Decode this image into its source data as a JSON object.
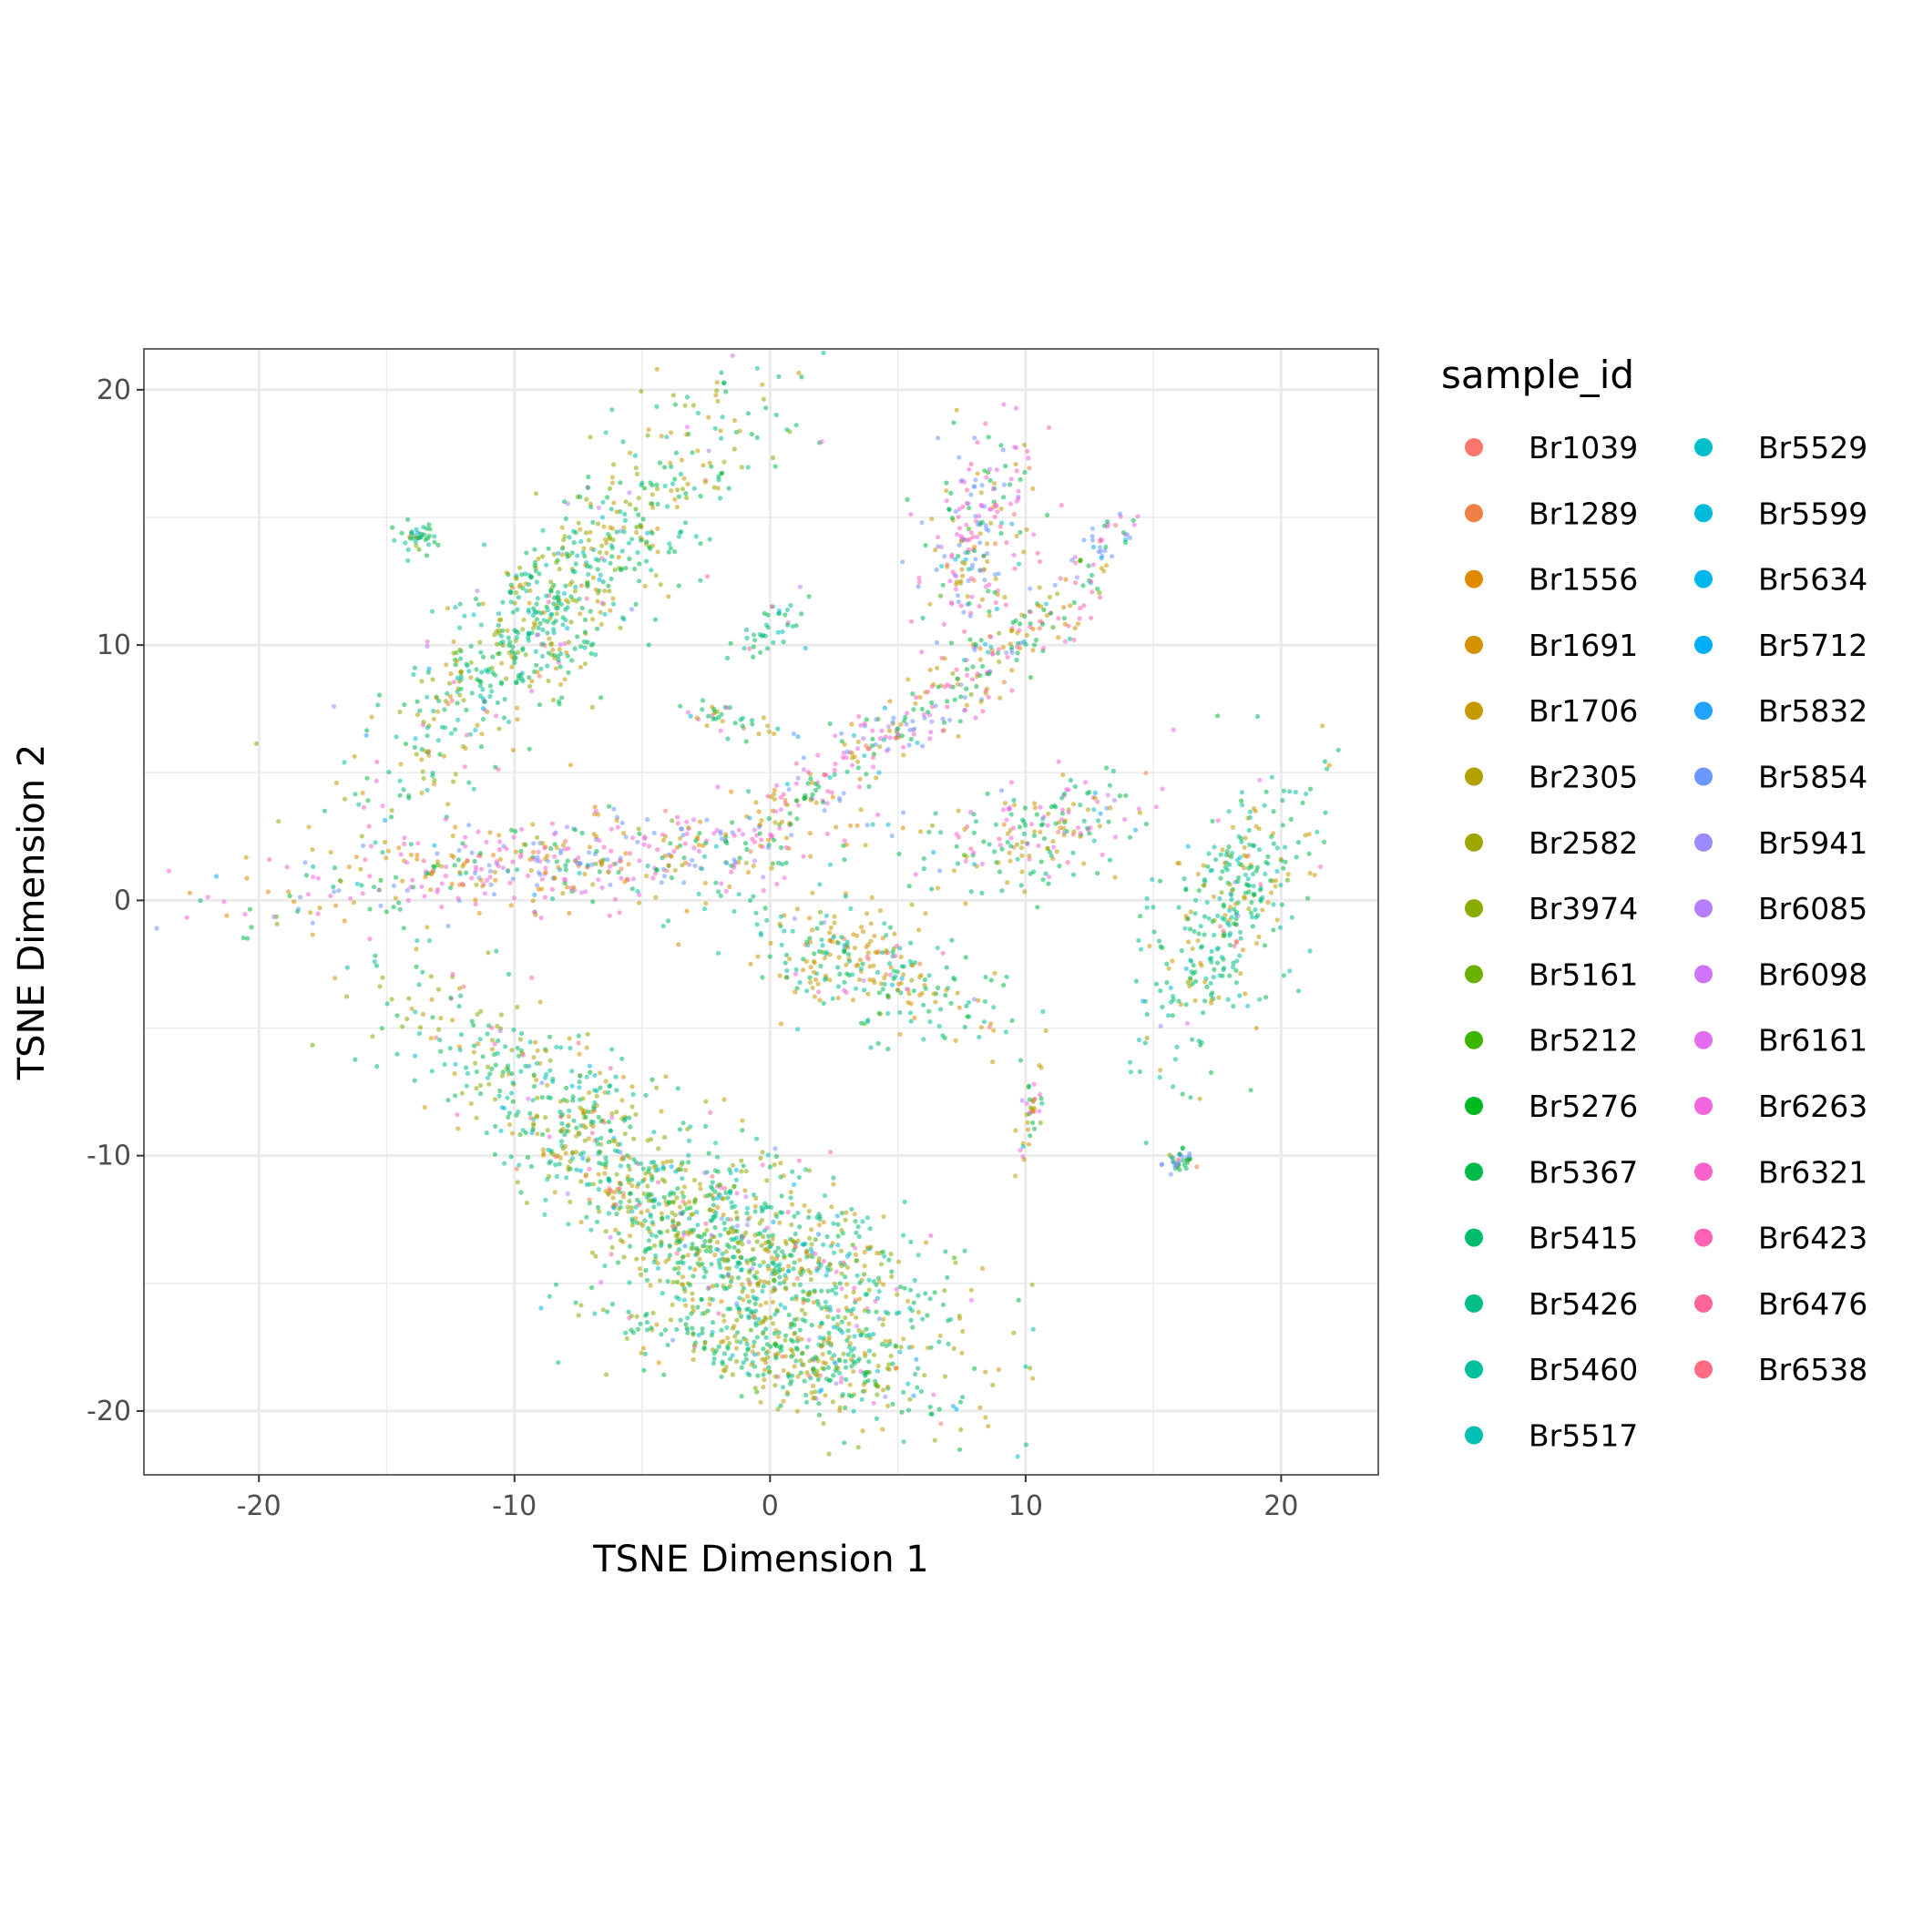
{
  "chart_data": {
    "type": "scatter",
    "title": "",
    "xlabel": "TSNE Dimension 1",
    "ylabel": "TSNE Dimension 2",
    "xlim": [
      -24.5,
      23.8
    ],
    "ylim": [
      -22.5,
      21.6
    ],
    "x_ticks": [
      -20,
      -10,
      0,
      10,
      20
    ],
    "y_ticks": [
      -20,
      -10,
      0,
      10,
      20
    ],
    "x_tick_labels": [
      "-20",
      "-10",
      "0",
      "10",
      "20"
    ],
    "y_tick_labels": [
      "-20",
      "-10",
      "0",
      "10",
      "20"
    ],
    "grid": true,
    "legend": {
      "title": "sample_id",
      "position": "right",
      "columns": 2
    },
    "series": [
      {
        "name": "Br1039",
        "color": "#F8766D"
      },
      {
        "name": "Br1289",
        "color": "#EE8044"
      },
      {
        "name": "Br1556",
        "color": "#E18A00"
      },
      {
        "name": "Br1691",
        "color": "#D49200"
      },
      {
        "name": "Br1706",
        "color": "#C49A00"
      },
      {
        "name": "Br2305",
        "color": "#B2A100"
      },
      {
        "name": "Br2582",
        "color": "#9EA700"
      },
      {
        "name": "Br3974",
        "color": "#88AC00"
      },
      {
        "name": "Br5161",
        "color": "#6BB100"
      },
      {
        "name": "Br5212",
        "color": "#3DB500"
      },
      {
        "name": "Br5276",
        "color": "#00B81F"
      },
      {
        "name": "Br5367",
        "color": "#00BA4A"
      },
      {
        "name": "Br5415",
        "color": "#00BC6B"
      },
      {
        "name": "Br5426",
        "color": "#00BE86"
      },
      {
        "name": "Br5460",
        "color": "#00C09F"
      },
      {
        "name": "Br5517",
        "color": "#00C0B6"
      },
      {
        "name": "Br5529",
        "color": "#00BECA"
      },
      {
        "name": "Br5599",
        "color": "#00BBDC"
      },
      {
        "name": "Br5634",
        "color": "#00B6EB"
      },
      {
        "name": "Br5712",
        "color": "#00AEF8"
      },
      {
        "name": "Br5832",
        "color": "#1FA3FF"
      },
      {
        "name": "Br5854",
        "color": "#6B97FF"
      },
      {
        "name": "Br5941",
        "color": "#988AFF"
      },
      {
        "name": "Br6085",
        "color": "#B77DFF"
      },
      {
        "name": "Br6098",
        "color": "#CF74F9"
      },
      {
        "name": "Br6161",
        "color": "#E36CEF"
      },
      {
        "name": "Br6263",
        "color": "#F066DF"
      },
      {
        "name": "Br6321",
        "color": "#FA62CB"
      },
      {
        "name": "Br6423",
        "color": "#FF62B4"
      },
      {
        "name": "Br6476",
        "color": "#FF659A"
      },
      {
        "name": "Br6538",
        "color": "#FD6C82"
      }
    ],
    "clusters": [
      {
        "cx": -8.5,
        "cy": 11.5,
        "rx": 11.5,
        "ry": 3.0,
        "angle": 47,
        "mix": [
          11,
          12,
          7,
          4,
          14
        ]
      },
      {
        "cx": -6.0,
        "cy": -10.5,
        "rx": 12.5,
        "ry": 3.0,
        "angle": -42,
        "mix": [
          11,
          12,
          7,
          4,
          14
        ]
      },
      {
        "cx": 0.5,
        "cy": -14.0,
        "rx": 8.5,
        "ry": 3.5,
        "angle": -28,
        "mix": [
          11,
          12,
          7,
          4,
          14
        ]
      },
      {
        "cx": 0.0,
        "cy": -17.8,
        "rx": 7.5,
        "ry": 1.8,
        "angle": -12,
        "mix": [
          11,
          12,
          7,
          4
        ]
      },
      {
        "cx": 3.5,
        "cy": -2.5,
        "rx": 6.0,
        "ry": 2.3,
        "angle": -20,
        "mix": [
          11,
          12,
          4,
          3,
          14
        ]
      },
      {
        "cx": -8.0,
        "cy": 1.5,
        "rx": 13.0,
        "ry": 1.8,
        "angle": 6,
        "mix": [
          26,
          27,
          11,
          4,
          2,
          21
        ]
      },
      {
        "cx": 4.0,
        "cy": 6.0,
        "rx": 8.0,
        "ry": 1.3,
        "angle": 32,
        "mix": [
          26,
          28,
          4,
          11,
          21
        ]
      },
      {
        "cx": 8.0,
        "cy": 14.0,
        "rx": 5.0,
        "ry": 2.2,
        "angle": 75,
        "mix": [
          28,
          4,
          11,
          21,
          26
        ]
      },
      {
        "cx": 10.0,
        "cy": 10.5,
        "rx": 4.5,
        "ry": 1.2,
        "angle": 35,
        "mix": [
          3,
          4,
          11,
          28
        ]
      },
      {
        "cx": 10.5,
        "cy": 2.5,
        "rx": 4.5,
        "ry": 2.0,
        "angle": 20,
        "mix": [
          11,
          12,
          4,
          26
        ]
      },
      {
        "cx": 18.0,
        "cy": -0.5,
        "rx": 6.5,
        "ry": 2.5,
        "angle": 65,
        "mix": [
          11,
          12,
          14,
          4
        ]
      },
      {
        "cx": 0.0,
        "cy": 10.5,
        "rx": 1.8,
        "ry": 1.0,
        "angle": 40,
        "mix": [
          11,
          12,
          14
        ]
      },
      {
        "cx": -1.5,
        "cy": 7.0,
        "rx": 2.2,
        "ry": 0.6,
        "angle": -10,
        "mix": [
          11,
          4,
          26,
          12
        ]
      },
      {
        "cx": 10.3,
        "cy": -8.0,
        "rx": 2.0,
        "ry": 0.5,
        "angle": 80,
        "mix": [
          26,
          11,
          4
        ]
      },
      {
        "cx": 16.0,
        "cy": -10.2,
        "rx": 0.6,
        "ry": 0.5,
        "angle": 0,
        "mix": [
          21,
          11
        ]
      },
      {
        "cx": -13.8,
        "cy": 14.2,
        "rx": 0.7,
        "ry": 0.7,
        "angle": 0,
        "mix": [
          11,
          14
        ]
      },
      {
        "cx": 13.0,
        "cy": 14.0,
        "rx": 1.5,
        "ry": 0.8,
        "angle": 40,
        "mix": [
          26,
          11,
          21
        ]
      }
    ]
  }
}
